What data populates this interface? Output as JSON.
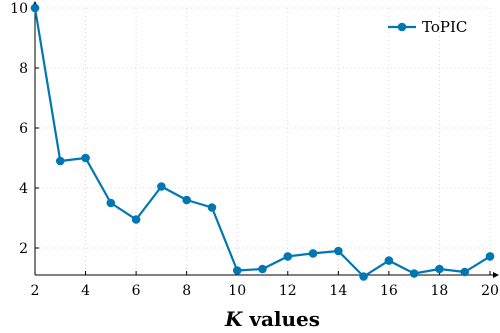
{
  "chart_data": {
    "type": "line",
    "title": "",
    "xlabel_var": "K",
    "xlabel_rest": " values",
    "ylabel": "",
    "xlim": [
      2,
      20
    ],
    "ylim": [
      1.1,
      10
    ],
    "xticks": [
      2,
      4,
      6,
      8,
      10,
      12,
      14,
      16,
      18,
      20
    ],
    "yticks": [
      2,
      4,
      6,
      8,
      10
    ],
    "grid": "dotted",
    "legend_position": "top-right",
    "colors": {
      "series": "#0077b3",
      "grid": "#d0d0d0",
      "axis": "#000000"
    },
    "series": [
      {
        "name": "ToPIC",
        "x": [
          2,
          3,
          4,
          5,
          6,
          7,
          8,
          9,
          10,
          11,
          12,
          13,
          14,
          15,
          16,
          17,
          18,
          19,
          20
        ],
        "y": [
          10.0,
          4.9,
          5.0,
          3.5,
          2.95,
          4.05,
          3.6,
          3.35,
          1.25,
          1.3,
          1.72,
          1.82,
          1.9,
          1.05,
          1.58,
          1.15,
          1.3,
          1.2,
          1.72
        ]
      }
    ]
  }
}
